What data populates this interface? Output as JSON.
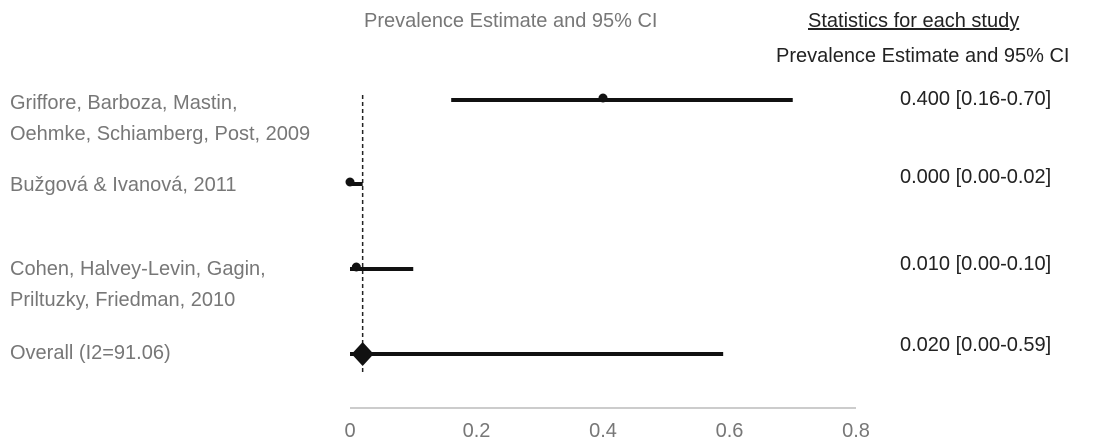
{
  "chart_data": {
    "type": "forest",
    "title": "Prevalence Estimate and 95% CI",
    "stats_header": "Statistics for each study",
    "stats_subheader": "Prevalence Estimate and 95% CI",
    "xlim": [
      0,
      0.8
    ],
    "x_ticks": [
      "0",
      "0.2",
      "0.4",
      "0.6",
      "0.8"
    ],
    "reference_line": 0.02,
    "studies": [
      {
        "label_lines": [
          "Griffore, Barboza, Mastin,",
          "Oehmke, Schiamberg, Post, 2009"
        ],
        "estimate": 0.4,
        "lower": 0.16,
        "upper": 0.7,
        "stat_text": "0.400 [0.16-0.70]"
      },
      {
        "label_lines": [
          "Bužgová & Ivanová, 2011"
        ],
        "estimate": 0.0,
        "lower": 0.0,
        "upper": 0.02,
        "stat_text": "0.000 [0.00-0.02]"
      },
      {
        "label_lines": [
          "Cohen, Halvey-Levin, Gagin,",
          "Priltuzky, Friedman, 2010"
        ],
        "estimate": 0.01,
        "lower": 0.0,
        "upper": 0.1,
        "stat_text": "0.010 [0.00-0.10]"
      }
    ],
    "overall": {
      "label": "Overall (I2=91.06)",
      "estimate": 0.02,
      "lower": 0.0,
      "upper": 0.59,
      "stat_text": "0.020 [0.00-0.59]"
    }
  }
}
